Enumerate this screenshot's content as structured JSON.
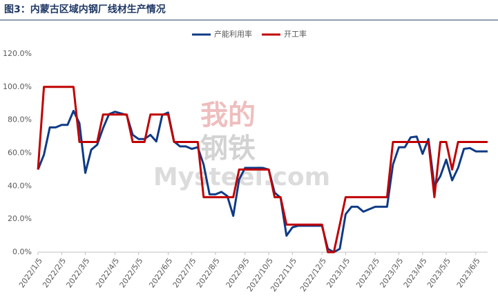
{
  "chart_data": {
    "type": "line",
    "title": "图3：内蒙古区域内钢厂线材生产情况",
    "watermark": [
      "我的",
      "钢铁",
      "Mysteel.com"
    ],
    "categories": [
      "2022/1/5",
      null,
      null,
      null,
      "2022/2/5",
      null,
      null,
      null,
      "2022/3/5",
      null,
      null,
      null,
      null,
      "2022/4/5",
      null,
      null,
      null,
      "2022/5/5",
      null,
      null,
      null,
      null,
      "2022/6/5",
      null,
      null,
      null,
      "2022/7/5",
      null,
      null,
      null,
      "2022/8/5",
      null,
      null,
      null,
      null,
      "2022/9/5",
      null,
      null,
      null,
      "2022/10/5",
      null,
      null,
      null,
      "2022/11/5",
      null,
      null,
      null,
      null,
      "2022/12/5",
      null,
      null,
      null,
      "2023/1/5",
      null,
      null,
      null,
      null,
      "2023/2/5",
      null,
      null,
      null,
      "2023/3/5",
      null,
      null,
      null,
      "2023/4/5",
      null,
      null,
      null,
      "2023/5/5",
      null,
      null,
      null,
      null,
      "2023/6/5",
      null,
      null
    ],
    "series": [
      {
        "name": "产能利用率",
        "color": "#0e3a86",
        "values": [
          50,
          59,
          75.5,
          75.5,
          77,
          77,
          85.5,
          78,
          48,
          62,
          65,
          75,
          83.5,
          85,
          84,
          83,
          71,
          68.5,
          68.5,
          71,
          67,
          83,
          84.5,
          67,
          64,
          64,
          62.5,
          63.5,
          53,
          35,
          35,
          36.5,
          34,
          22,
          44,
          51,
          51,
          51,
          51,
          50,
          36,
          33,
          10,
          15,
          16,
          16,
          16,
          16,
          16,
          2,
          0,
          2,
          23,
          27.5,
          27.5,
          24.5,
          26,
          27.5,
          27.5,
          27.5,
          53,
          63.5,
          63.5,
          69.5,
          70,
          59.5,
          68.5,
          40,
          46,
          56,
          43.5,
          51,
          62.5,
          63,
          61,
          61,
          61
        ]
      },
      {
        "name": "开工率",
        "color": "#c00000",
        "values": [
          50,
          100,
          100,
          100,
          100,
          100,
          100,
          66.7,
          66.7,
          66.7,
          66.7,
          83.3,
          83.3,
          83.3,
          83.3,
          83.3,
          66.7,
          66.7,
          66.7,
          83.3,
          83.3,
          83.3,
          83.3,
          66.7,
          66.7,
          66.7,
          66.7,
          66.7,
          33.3,
          33.3,
          33.3,
          33.3,
          33.3,
          33.3,
          50,
          50,
          50,
          50,
          50,
          50,
          33.3,
          33.3,
          16.7,
          16.7,
          16.7,
          16.7,
          16.7,
          16.7,
          16.7,
          0,
          0,
          16.7,
          33.3,
          33.3,
          33.3,
          33.3,
          33.3,
          33.3,
          33.3,
          33.3,
          66.7,
          66.7,
          66.7,
          66.7,
          66.7,
          66.7,
          66.7,
          33.3,
          66.7,
          66.7,
          50,
          66.7,
          66.7,
          66.7,
          66.7,
          66.7,
          66.7
        ]
      }
    ],
    "ylim": [
      0,
      120
    ],
    "yticks": [
      {
        "value": 0,
        "label": "0.0%"
      },
      {
        "value": 20,
        "label": "20.0%"
      },
      {
        "value": 40,
        "label": "40.0%"
      },
      {
        "value": 60,
        "label": "60.0%"
      },
      {
        "value": 80,
        "label": "80.0%"
      },
      {
        "value": 100,
        "label": "100.0%"
      },
      {
        "value": 120,
        "label": "120.0%"
      }
    ],
    "grid": false,
    "legend": "top"
  }
}
